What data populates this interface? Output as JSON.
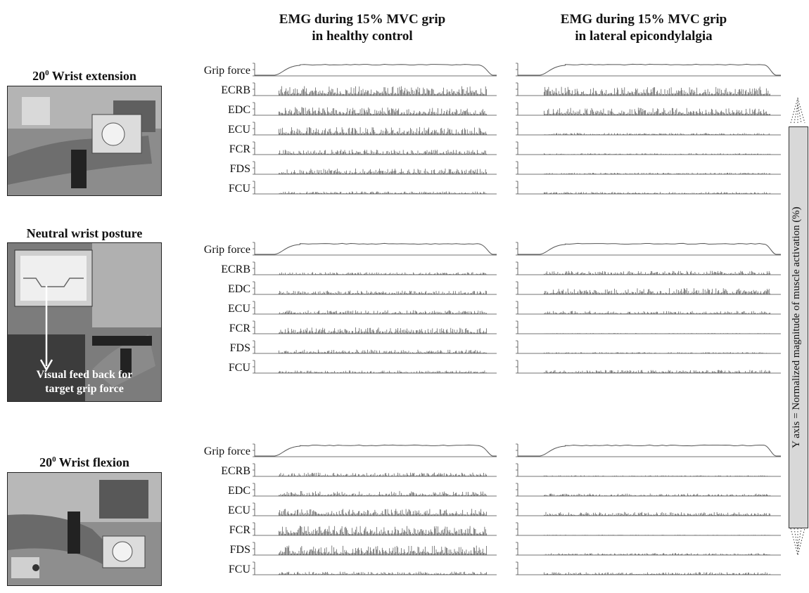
{
  "columns": [
    {
      "line1": "EMG during 15% MVC grip",
      "line2": "in healthy control"
    },
    {
      "line1": "EMG during 15% MVC grip",
      "line2": "in lateral epicondylalgia"
    }
  ],
  "conditions": [
    {
      "label": "Wrist extension",
      "degree": "20",
      "sup": "0"
    },
    {
      "label": "Neutral wrist posture",
      "degree": "",
      "sup": ""
    },
    {
      "label": "Wrist flexion",
      "degree": "20",
      "sup": "0"
    }
  ],
  "photo_caption": {
    "line1": "Visual feed back for",
    "line2": "target grip force"
  },
  "signals": [
    "Grip force",
    "ECRB",
    "EDC",
    "ECU",
    "FCR",
    "FDS",
    "FCU"
  ],
  "y_axis_label": "Y axis  =  Normalized magnitude of muscle activation (%)",
  "chart_data": {
    "type": "line",
    "description_source": "EMG traces per muscle, two groups x three postures",
    "groups": [
      "healthy control",
      "lateral epicondylalgia"
    ],
    "amplitude_levels": {
      "extension": {
        "healthy control": {
          "ECRB": 0.75,
          "EDC": 0.65,
          "ECU": 0.65,
          "FCR": 0.4,
          "FDS": 0.45,
          "FCU": 0.2
        },
        "lateral epicondylalgia": {
          "ECRB": 0.7,
          "EDC": 0.6,
          "ECU": 0.15,
          "FCR": 0.1,
          "FDS": 0.12,
          "FCU": 0.15
        }
      },
      "neutral": {
        "healthy control": {
          "ECRB": 0.2,
          "EDC": 0.3,
          "ECU": 0.3,
          "FCR": 0.5,
          "FDS": 0.3,
          "FCU": 0.2
        },
        "lateral epicondylalgia": {
          "ECRB": 0.3,
          "EDC": 0.5,
          "ECU": 0.25,
          "FCR": 0.05,
          "FDS": 0.1,
          "FCU": 0.25
        }
      },
      "flexion": {
        "healthy control": {
          "ECRB": 0.3,
          "EDC": 0.4,
          "ECU": 0.55,
          "FCR": 0.75,
          "FDS": 0.75,
          "FCU": 0.25
        },
        "lateral epicondylalgia": {
          "ECRB": 0.08,
          "EDC": 0.2,
          "ECU": 0.3,
          "FCR": 0.05,
          "FDS": 0.15,
          "FCU": 0.2
        }
      }
    }
  }
}
